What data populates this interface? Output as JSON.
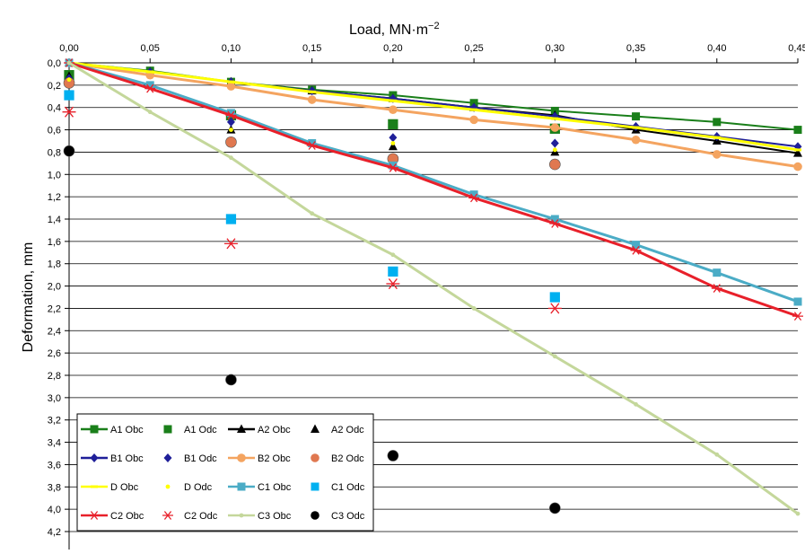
{
  "chart_data": {
    "type": "scatter",
    "title": "",
    "xlabel": "Load, MN·m",
    "xlabel_sup": "−2",
    "ylabel": "Deformation, mm",
    "x_axis_position": "top",
    "y_axis_inverted": true,
    "xlim": [
      0,
      0.45
    ],
    "ylim": [
      0,
      4.2
    ],
    "x_ticks": [
      "0,00",
      "0,05",
      "0,10",
      "0,15",
      "0,20",
      "0,25",
      "0,30",
      "0,35",
      "0,40",
      "0,45"
    ],
    "y_ticks": [
      "0,0",
      "0,2",
      "0,4",
      "0,6",
      "0,8",
      "1,0",
      "1,2",
      "1,4",
      "1,6",
      "1,8",
      "2,0",
      "2,2",
      "2,4",
      "2,6",
      "2,8",
      "3,0",
      "3,2",
      "3,4",
      "3,6",
      "3,8",
      "4,0",
      "4,2"
    ],
    "grid": "horizontal",
    "legend_position": "bottom-left",
    "series": [
      {
        "name": "A1  Obc",
        "kind": "line",
        "color": "#1a7f1a",
        "marker": "square",
        "x": [
          0,
          0.05,
          0.1,
          0.15,
          0.2,
          0.25,
          0.3,
          0.35,
          0.4,
          0.45
        ],
        "y": [
          0,
          0.07,
          0.17,
          0.24,
          0.29,
          0.36,
          0.43,
          0.48,
          0.53,
          0.6
        ]
      },
      {
        "name": "A1 Odc",
        "kind": "points",
        "color": "#1a7f1a",
        "marker": "square",
        "x": [
          0,
          0.1,
          0.2,
          0.3
        ],
        "y": [
          0.11,
          0.47,
          0.55,
          0.59
        ]
      },
      {
        "name": "A2 Obc",
        "kind": "line",
        "color": "#000000",
        "marker": "triangle",
        "x": [
          0,
          0.05,
          0.1,
          0.15,
          0.2,
          0.25,
          0.3,
          0.35,
          0.4,
          0.45
        ],
        "y": [
          0,
          0.08,
          0.17,
          0.25,
          0.32,
          0.4,
          0.47,
          0.6,
          0.7,
          0.81
        ]
      },
      {
        "name": "A2 Odc",
        "kind": "points",
        "color": "#000000",
        "marker": "triangle",
        "x": [
          0,
          0.1,
          0.2,
          0.3
        ],
        "y": [
          0.12,
          0.6,
          0.75,
          0.8
        ]
      },
      {
        "name": "B1 Obc",
        "kind": "line",
        "color": "#1f1f99",
        "marker": "diamond",
        "x": [
          0,
          0.05,
          0.1,
          0.15,
          0.2,
          0.25,
          0.3,
          0.35,
          0.4,
          0.45
        ],
        "y": [
          0,
          0.08,
          0.17,
          0.25,
          0.32,
          0.4,
          0.48,
          0.57,
          0.66,
          0.75
        ]
      },
      {
        "name": "B1 Odc",
        "kind": "points",
        "color": "#1f1f99",
        "marker": "diamond",
        "x": [
          0,
          0.1,
          0.2,
          0.3
        ],
        "y": [
          0.14,
          0.53,
          0.67,
          0.72
        ]
      },
      {
        "name": "B2 Obc",
        "kind": "line",
        "color": "#f4a460",
        "marker": "circle",
        "x": [
          0,
          0.05,
          0.1,
          0.15,
          0.2,
          0.25,
          0.3,
          0.35,
          0.4,
          0.45
        ],
        "y": [
          0,
          0.11,
          0.21,
          0.33,
          0.42,
          0.51,
          0.58,
          0.69,
          0.82,
          0.93
        ]
      },
      {
        "name": "B2 Odc",
        "kind": "points",
        "color": "#e07850",
        "marker": "circle",
        "x": [
          0,
          0.1,
          0.2,
          0.3
        ],
        "y": [
          0.18,
          0.71,
          0.86,
          0.91
        ]
      },
      {
        "name": "D Obc",
        "kind": "line",
        "color": "#ffff00",
        "marker": "dash",
        "x": [
          0,
          0.05,
          0.1,
          0.15,
          0.2,
          0.25,
          0.3,
          0.35,
          0.4,
          0.45
        ],
        "y": [
          0,
          0.08,
          0.17,
          0.26,
          0.34,
          0.42,
          0.5,
          0.58,
          0.67,
          0.78
        ]
      },
      {
        "name": "D Odc",
        "kind": "points",
        "color": "#ffff00",
        "marker": "dot",
        "x": [
          0,
          0.1,
          0.2,
          0.3
        ],
        "y": [
          0.15,
          0.6,
          0.72,
          0.78
        ]
      },
      {
        "name": "C1 Obc",
        "kind": "line",
        "color": "#4bacc6",
        "marker": "square",
        "x": [
          0,
          0.05,
          0.1,
          0.15,
          0.2,
          0.25,
          0.3,
          0.35,
          0.4,
          0.45
        ],
        "y": [
          0,
          0.2,
          0.45,
          0.72,
          0.92,
          1.18,
          1.4,
          1.63,
          1.88,
          2.14
        ]
      },
      {
        "name": "C1 Odc",
        "kind": "points",
        "color": "#00b0f0",
        "marker": "square",
        "x": [
          0,
          0.1,
          0.2,
          0.3
        ],
        "y": [
          0.29,
          1.4,
          1.87,
          2.1
        ]
      },
      {
        "name": "C2 Obc",
        "kind": "line",
        "color": "#e8202a",
        "marker": "star",
        "x": [
          0,
          0.05,
          0.1,
          0.15,
          0.2,
          0.25,
          0.3,
          0.35,
          0.4,
          0.45
        ],
        "y": [
          0,
          0.23,
          0.47,
          0.74,
          0.94,
          1.21,
          1.44,
          1.68,
          2.02,
          2.27
        ]
      },
      {
        "name": "C2 Odc",
        "kind": "points",
        "color": "#e8202a",
        "marker": "star",
        "x": [
          0,
          0.1,
          0.2,
          0.3
        ],
        "y": [
          0.44,
          1.62,
          1.98,
          2.2
        ]
      },
      {
        "name": "C3 Obc",
        "kind": "line",
        "color": "#c4d79b",
        "marker": "dot",
        "x": [
          0,
          0.05,
          0.1,
          0.15,
          0.2,
          0.25,
          0.3,
          0.35,
          0.4,
          0.45
        ],
        "y": [
          0,
          0.44,
          0.85,
          1.35,
          1.72,
          2.2,
          2.63,
          3.06,
          3.51,
          4.04
        ]
      },
      {
        "name": "C3 Odc",
        "kind": "points",
        "color": "#000000",
        "marker": "circle",
        "x": [
          0,
          0.1,
          0.2,
          0.3
        ],
        "y": [
          0.79,
          2.84,
          3.52,
          3.99
        ]
      }
    ]
  }
}
